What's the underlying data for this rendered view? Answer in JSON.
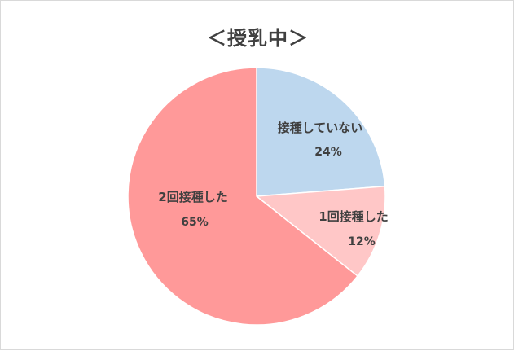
{
  "chart_data": {
    "type": "pie",
    "title": "＜授乳中＞",
    "slices": [
      {
        "label": "接種していない",
        "value": 24,
        "value_label": "24%",
        "color": "#bdd7ee"
      },
      {
        "label": "1回接種した",
        "value": 12,
        "value_label": "12%",
        "color": "#ffc7c7"
      },
      {
        "label": "2回接種した",
        "value": 65,
        "value_label": "65%",
        "color": "#ff9999"
      }
    ],
    "start_angle_deg": 0,
    "direction": "clockwise",
    "legend": "none"
  }
}
